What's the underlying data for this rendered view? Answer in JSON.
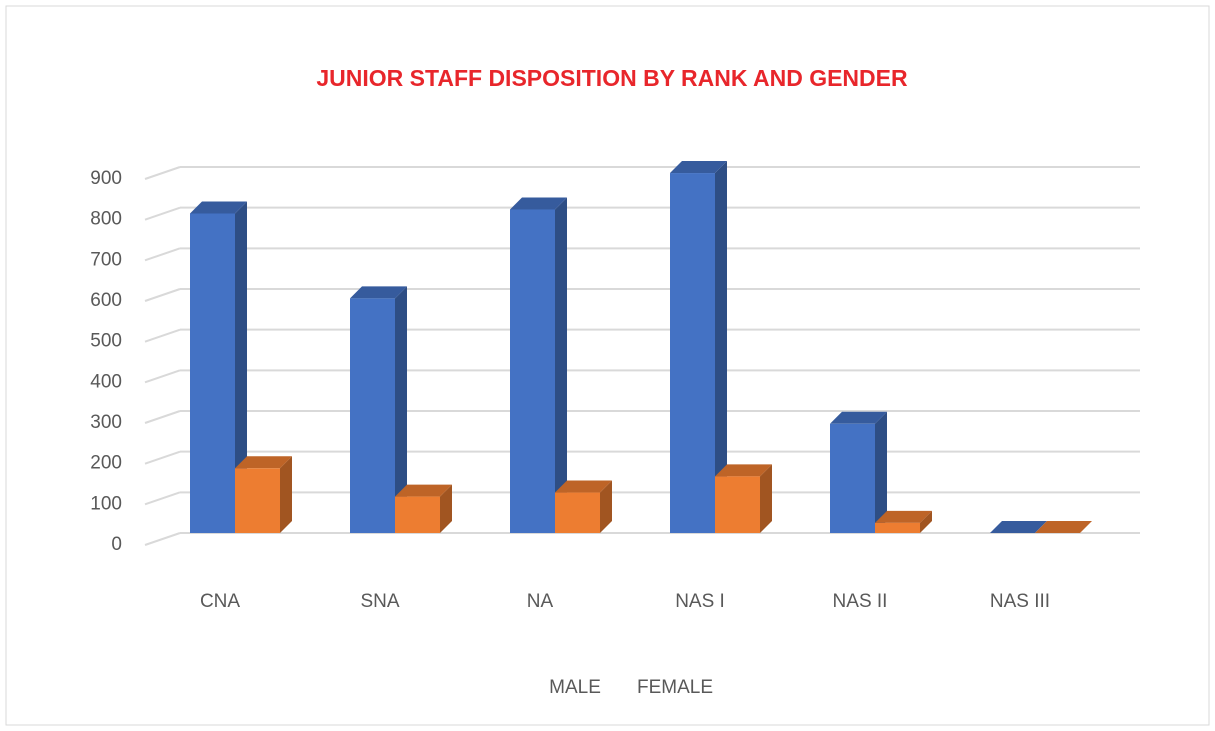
{
  "chart_data": {
    "type": "bar3d",
    "title": "JUNIOR STAFF DISPOSITION BY RANK AND GENDER",
    "categories": [
      "CNA",
      "SNA",
      "NA",
      "NAS I",
      "NAS II",
      "NAS III"
    ],
    "series": [
      {
        "name": "MALE",
        "color": "#4472c4",
        "values": [
          790,
          580,
          800,
          890,
          270,
          0
        ]
      },
      {
        "name": "FEMALE",
        "color": "#ed7d31",
        "values": [
          160,
          90,
          100,
          140,
          25,
          0
        ]
      }
    ],
    "ylim": [
      0,
      900
    ],
    "yticks": [
      0,
      100,
      200,
      300,
      400,
      500,
      600,
      700,
      800,
      900
    ],
    "grid": true
  }
}
